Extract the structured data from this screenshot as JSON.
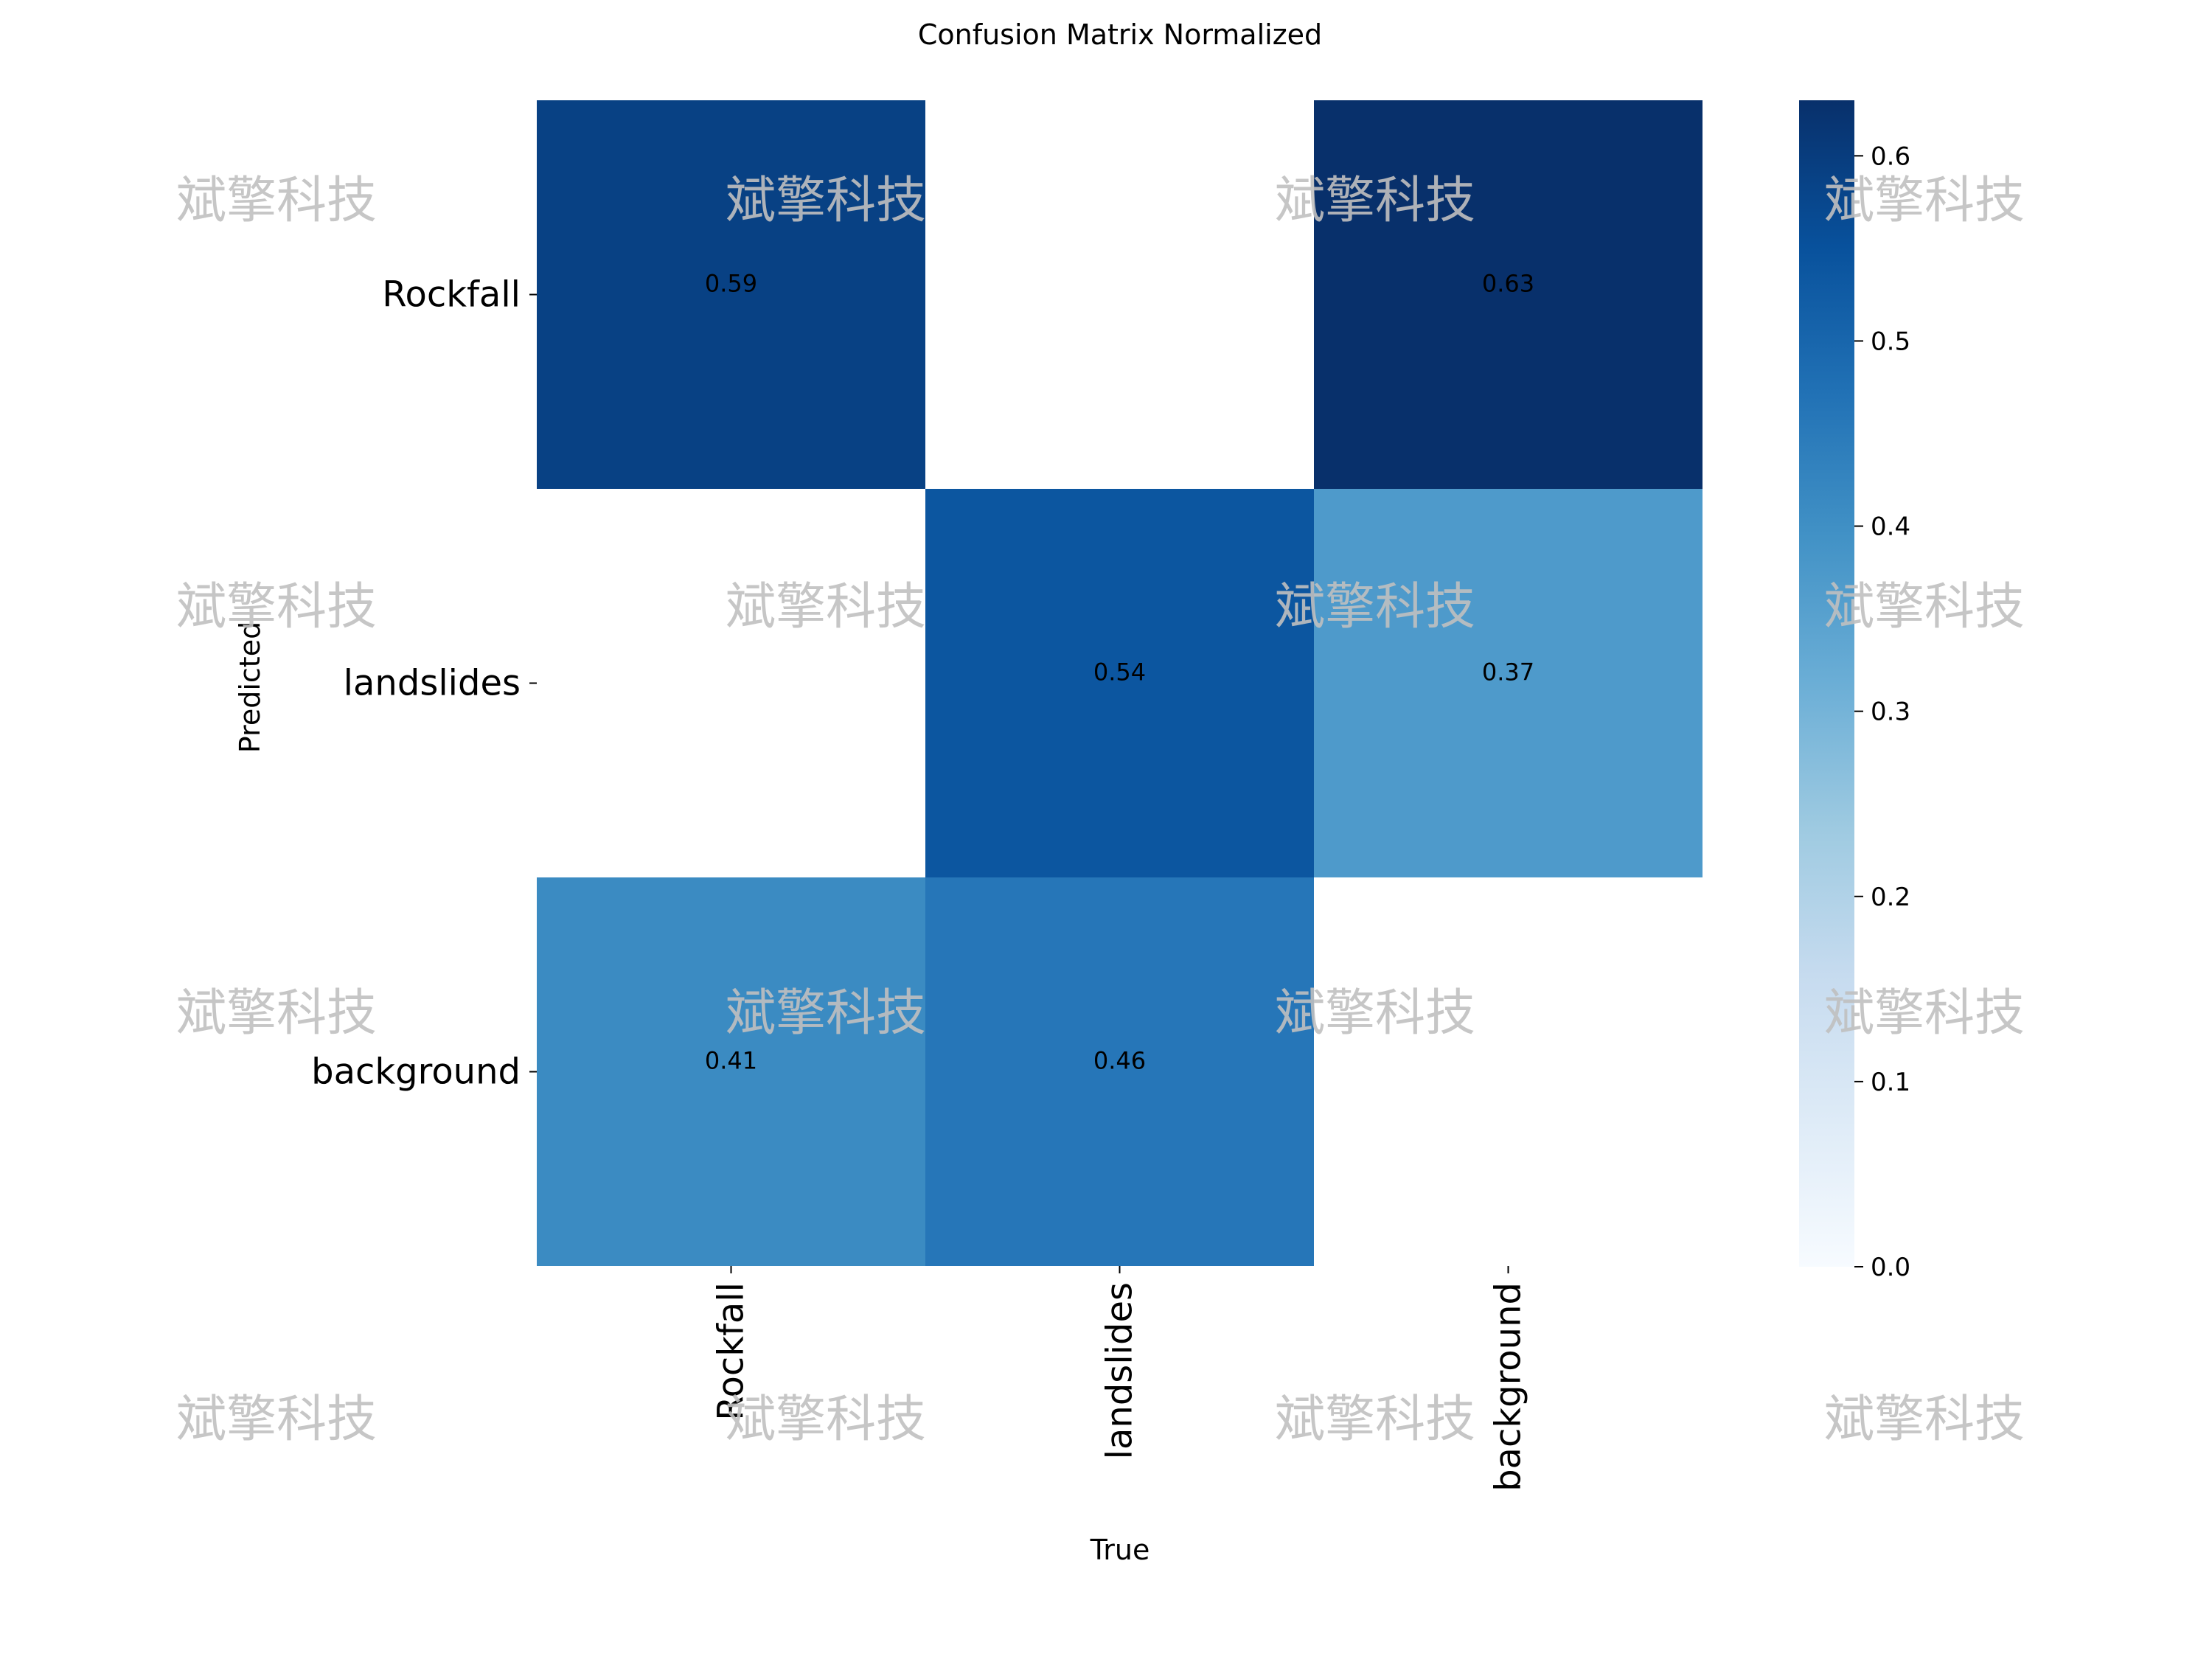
{
  "chart_data": {
    "type": "heatmap",
    "title": "Confusion Matrix Normalized",
    "xlabel": "True",
    "ylabel": "Predicted",
    "x_categories": [
      "Rockfall",
      "landslides",
      "background"
    ],
    "y_categories": [
      "Rockfall",
      "landslides",
      "background"
    ],
    "values": [
      [
        0.59,
        null,
        0.63
      ],
      [
        null,
        0.54,
        0.37
      ],
      [
        0.41,
        0.46,
        null
      ]
    ],
    "annotations": [
      [
        "0.59",
        "",
        "0.63"
      ],
      [
        "",
        "0.54",
        "0.37"
      ],
      [
        "0.41",
        "0.46",
        ""
      ]
    ],
    "colormap": "Blues",
    "vmin": 0.0,
    "vmax": 0.63,
    "colorbar_ticks": [
      "0.0",
      "0.1",
      "0.2",
      "0.3",
      "0.4",
      "0.5",
      "0.6"
    ],
    "colorbar_tick_values": [
      0.0,
      0.1,
      0.2,
      0.3,
      0.4,
      0.5,
      0.6
    ],
    "watermark": "斌擎科技"
  }
}
